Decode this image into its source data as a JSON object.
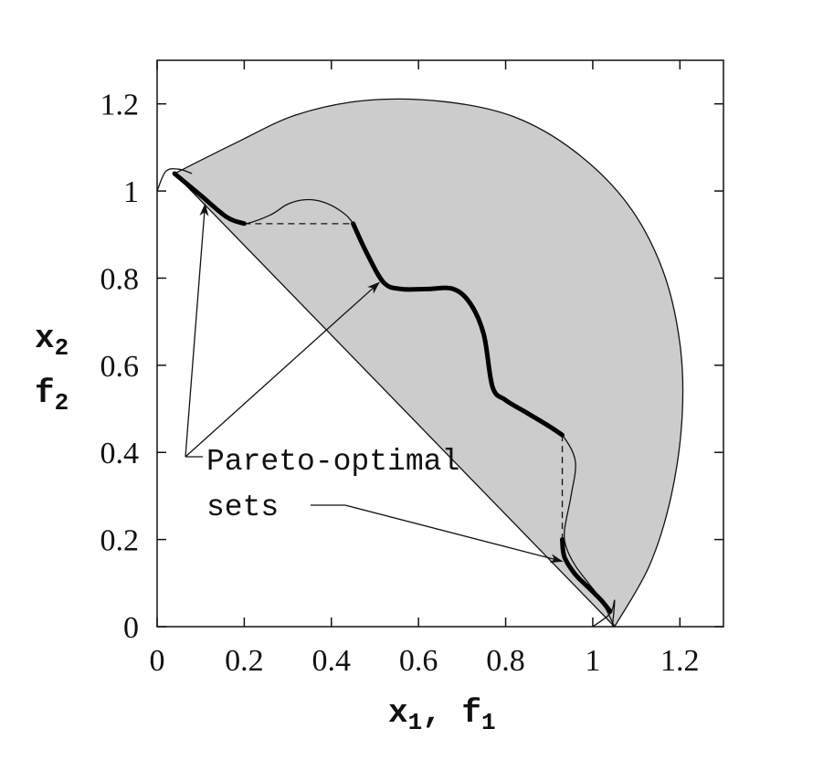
{
  "chart_data": {
    "type": "area",
    "xlim": [
      0,
      1.3
    ],
    "ylim": [
      0,
      1.3
    ],
    "x_ticks": [
      "0",
      "0.2",
      "0.4",
      "0.6",
      "0.8",
      "1",
      "1.2"
    ],
    "y_ticks": [
      "0",
      "0.2",
      "0.4",
      "0.6",
      "0.8",
      "1",
      "1.2"
    ],
    "xlabel": {
      "main": "x",
      "sub1": "1",
      "sep": ", f",
      "sub2": "1"
    },
    "ylabel": {
      "line1_main": "x",
      "line1_sub": "2",
      "line2_main": "f",
      "line2_sub": "2"
    },
    "annotation": {
      "line1": "Pareto-optimal",
      "line2": "sets"
    },
    "grid": false,
    "fill_color": "#cccccc",
    "outer_boundary": [
      [
        1.05,
        0.0
      ],
      [
        1.13,
        0.14
      ],
      [
        1.18,
        0.3
      ],
      [
        1.205,
        0.48
      ],
      [
        1.2,
        0.65
      ],
      [
        1.16,
        0.82
      ],
      [
        1.08,
        0.97
      ],
      [
        0.96,
        1.09
      ],
      [
        0.82,
        1.17
      ],
      [
        0.66,
        1.205
      ],
      [
        0.48,
        1.208
      ],
      [
        0.32,
        1.175
      ],
      [
        0.18,
        1.11
      ],
      [
        0.04,
        1.04
      ]
    ],
    "inner_boundary": [
      [
        0.04,
        1.04
      ],
      [
        0.1,
        0.99
      ],
      [
        0.16,
        0.94
      ],
      [
        0.2,
        0.925
      ],
      [
        0.26,
        0.945
      ],
      [
        0.3,
        0.97
      ],
      [
        0.34,
        0.98
      ],
      [
        0.38,
        0.975
      ],
      [
        0.42,
        0.955
      ],
      [
        0.45,
        0.925
      ],
      [
        0.48,
        0.86
      ],
      [
        0.52,
        0.79
      ],
      [
        0.56,
        0.775
      ],
      [
        0.62,
        0.775
      ],
      [
        0.68,
        0.775
      ],
      [
        0.72,
        0.74
      ],
      [
        0.75,
        0.67
      ],
      [
        0.77,
        0.55
      ],
      [
        0.8,
        0.52
      ],
      [
        0.85,
        0.49
      ],
      [
        0.9,
        0.46
      ],
      [
        0.93,
        0.44
      ],
      [
        0.96,
        0.38
      ],
      [
        0.95,
        0.3
      ],
      [
        0.935,
        0.22
      ],
      [
        0.94,
        0.18
      ],
      [
        0.96,
        0.14
      ],
      [
        0.99,
        0.1
      ],
      [
        1.02,
        0.06
      ],
      [
        1.05,
        0.0
      ]
    ],
    "circle_arc_upper_left": [
      [
        0.0,
        1.0
      ],
      [
        0.02,
        1.045
      ],
      [
        0.05,
        1.05
      ],
      [
        0.08,
        1.04
      ]
    ],
    "circle_arc_lower_right": [
      [
        1.0,
        0.0
      ],
      [
        1.04,
        0.03
      ],
      [
        1.05,
        0.06
      ],
      [
        1.045,
        0.0
      ]
    ],
    "pareto_sets": [
      [
        [
          0.04,
          1.04
        ],
        [
          0.1,
          0.99
        ],
        [
          0.16,
          0.94
        ],
        [
          0.2,
          0.925
        ]
      ],
      [
        [
          0.45,
          0.925
        ],
        [
          0.48,
          0.86
        ],
        [
          0.52,
          0.79
        ],
        [
          0.56,
          0.775
        ],
        [
          0.62,
          0.775
        ],
        [
          0.68,
          0.775
        ],
        [
          0.72,
          0.74
        ],
        [
          0.75,
          0.67
        ],
        [
          0.77,
          0.55
        ],
        [
          0.8,
          0.52
        ],
        [
          0.85,
          0.49
        ],
        [
          0.9,
          0.46
        ],
        [
          0.93,
          0.44
        ]
      ],
      [
        [
          0.93,
          0.2
        ],
        [
          0.935,
          0.16
        ],
        [
          0.96,
          0.12
        ],
        [
          0.99,
          0.09
        ],
        [
          1.02,
          0.06
        ],
        [
          1.04,
          0.035
        ]
      ]
    ],
    "dashed_segments": [
      [
        [
          0.2,
          0.925
        ],
        [
          0.45,
          0.925
        ]
      ],
      [
        [
          0.93,
          0.44
        ],
        [
          0.93,
          0.2
        ]
      ]
    ],
    "arrow_targets": [
      [
        0.11,
        0.97
      ],
      [
        0.51,
        0.79
      ],
      [
        0.93,
        0.15
      ]
    ]
  }
}
